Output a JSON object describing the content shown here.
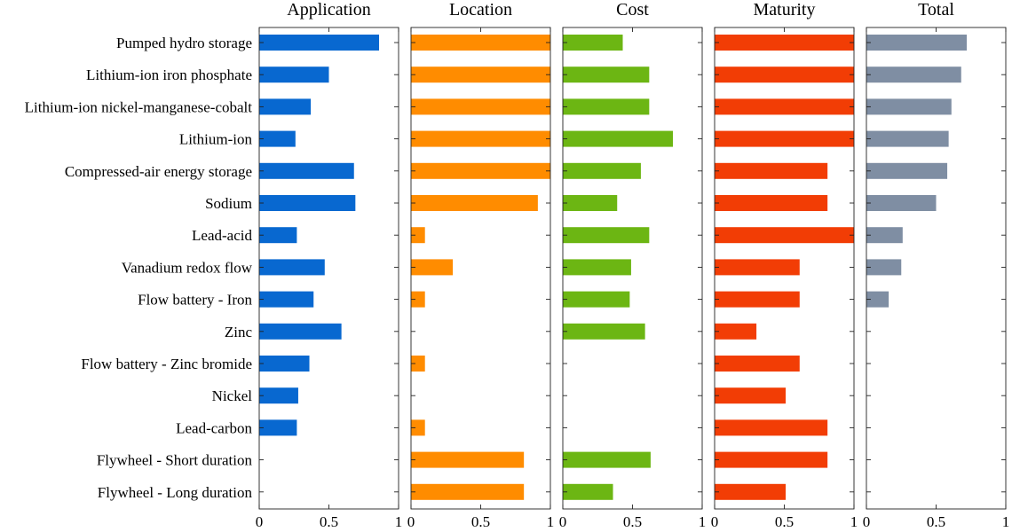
{
  "chart_data": {
    "type": "bar",
    "orientation": "horizontal",
    "categories": [
      "Pumped hydro storage",
      "Lithium-ion iron phosphate",
      "Lithium-ion nickel-manganese-cobalt",
      "Lithium-ion",
      "Compressed-air energy storage",
      "Sodium",
      "Lead-acid",
      "Vanadium redox flow",
      "Flow battery - Iron",
      "Zinc",
      "Flow battery - Zinc bromide",
      "Nickel",
      "Lead-carbon",
      "Flywheel - Short duration",
      "Flywheel - Long duration"
    ],
    "xlim": [
      0,
      1
    ],
    "xticks": [
      "0",
      "0.5",
      "1"
    ],
    "grid": false,
    "panels": [
      {
        "title": "Application",
        "color": "#0868d0",
        "values": [
          0.86,
          0.5,
          0.37,
          0.26,
          0.68,
          0.69,
          0.27,
          0.47,
          0.39,
          0.59,
          0.36,
          0.28,
          0.27,
          null,
          null
        ]
      },
      {
        "title": "Location",
        "color": "#ff8c00",
        "values": [
          1.0,
          1.0,
          1.0,
          1.0,
          1.0,
          0.91,
          0.1,
          0.3,
          0.1,
          null,
          0.1,
          null,
          0.1,
          0.81,
          0.81
        ]
      },
      {
        "title": "Cost",
        "color": "#6cb613",
        "values": [
          0.43,
          0.62,
          0.62,
          0.79,
          0.56,
          0.39,
          0.62,
          0.49,
          0.48,
          0.59,
          null,
          null,
          null,
          0.63,
          0.36
        ]
      },
      {
        "title": "Maturity",
        "color": "#f23d05",
        "values": [
          1.0,
          1.0,
          1.0,
          1.0,
          0.81,
          0.81,
          1.0,
          0.61,
          0.61,
          0.3,
          0.61,
          0.51,
          0.81,
          0.81,
          0.51
        ]
      },
      {
        "title": "Total",
        "color": "#7f8ea3",
        "values": [
          0.72,
          0.68,
          0.61,
          0.59,
          0.58,
          0.5,
          0.26,
          0.25,
          0.16,
          null,
          null,
          null,
          null,
          null,
          null
        ]
      }
    ]
  }
}
